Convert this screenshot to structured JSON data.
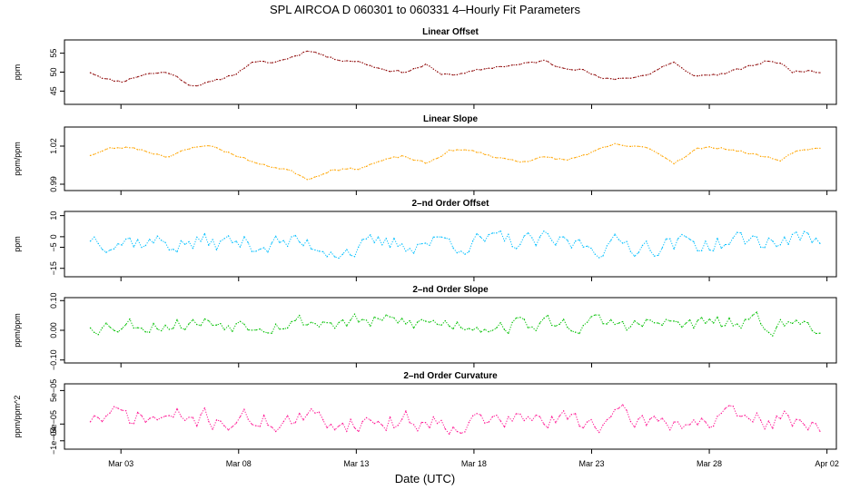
{
  "header": {
    "title": "SPL   AIRCOA D   060301 to 060331   4–Hourly Fit Parameters"
  },
  "x_axis": {
    "label": "Date (UTC)",
    "tick_labels": [
      "Mar 03",
      "Mar 08",
      "Mar 13",
      "Mar 18",
      "Mar 23",
      "Mar 28",
      "Apr 02"
    ],
    "tick_days": [
      3,
      8,
      13,
      18,
      23,
      28,
      33
    ],
    "range_days": [
      0.6,
      33.4
    ],
    "data_range_days": [
      1.7,
      32.7
    ]
  },
  "chart_data": [
    {
      "type": "line",
      "title": "Linear Offset",
      "ylabel": "ppm",
      "yticks": [
        "45",
        "50",
        "55"
      ],
      "ytick_values": [
        45,
        50,
        55
      ],
      "ylim": [
        41.5,
        58.5
      ],
      "color": "#8b0000",
      "seed": 11,
      "noise": 0.3,
      "series": [
        {
          "knots": [
            [
              1.7,
              50
            ],
            [
              2.5,
              48
            ],
            [
              3,
              47.5
            ],
            [
              4,
              49.5
            ],
            [
              5,
              50
            ],
            [
              6,
              46.5
            ],
            [
              7,
              47.5
            ],
            [
              8,
              50
            ],
            [
              8.5,
              52.5
            ],
            [
              9.5,
              52.5
            ],
            [
              10.5,
              54.5
            ],
            [
              11,
              56
            ],
            [
              12,
              53.5
            ],
            [
              13,
              53
            ],
            [
              14,
              51
            ],
            [
              15,
              50
            ],
            [
              16,
              52
            ],
            [
              16.5,
              49.5
            ],
            [
              17.5,
              49.5
            ],
            [
              19,
              51.5
            ],
            [
              20,
              52
            ],
            [
              21,
              53
            ],
            [
              21.5,
              51.5
            ],
            [
              22.5,
              51
            ],
            [
              23.5,
              48
            ],
            [
              24.5,
              48.5
            ],
            [
              25.5,
              49.5
            ],
            [
              26,
              51.5
            ],
            [
              26.5,
              52.5
            ],
            [
              27,
              50
            ],
            [
              27.5,
              49
            ],
            [
              28.5,
              49.5
            ],
            [
              29.5,
              51
            ],
            [
              30.5,
              53
            ],
            [
              31,
              52.5
            ],
            [
              31.5,
              50
            ],
            [
              32,
              50.5
            ],
            [
              32.7,
              50
            ]
          ]
        }
      ]
    },
    {
      "type": "line",
      "title": "Linear Slope",
      "ylabel": "ppm/ppm",
      "yticks": [
        "0.99",
        "1.02"
      ],
      "ytick_values": [
        0.99,
        1.02
      ],
      "ylim": [
        0.985,
        1.035
      ],
      "color": "#ffa500",
      "seed": 23,
      "noise": 0.0008,
      "series": [
        {
          "knots": [
            [
              1.7,
              1.013
            ],
            [
              2.5,
              1.018
            ],
            [
              3.5,
              1.019
            ],
            [
              4.5,
              1.014
            ],
            [
              5,
              1.012
            ],
            [
              6.5,
              1.021
            ],
            [
              7,
              1.019
            ],
            [
              8,
              1.012
            ],
            [
              9,
              1.005
            ],
            [
              10,
              1.002
            ],
            [
              11,
              0.994
            ],
            [
              12,
              1.002
            ],
            [
              13,
              1.002
            ],
            [
              14,
              1.008
            ],
            [
              15,
              1.012
            ],
            [
              16,
              1.006
            ],
            [
              17,
              1.017
            ],
            [
              18,
              1.016
            ],
            [
              19,
              1.011
            ],
            [
              20,
              1.008
            ],
            [
              21,
              1.011
            ],
            [
              22,
              1.009
            ],
            [
              23,
              1.015
            ],
            [
              24,
              1.021
            ],
            [
              25,
              1.019
            ],
            [
              25.5,
              1.018
            ],
            [
              26.5,
              1.007
            ],
            [
              27.5,
              1.018
            ],
            [
              28.5,
              1.019
            ],
            [
              29,
              1.017
            ],
            [
              30,
              1.013
            ],
            [
              31,
              1.009
            ],
            [
              31.5,
              1.014
            ],
            [
              32,
              1.018
            ],
            [
              32.7,
              1.017
            ]
          ]
        }
      ]
    },
    {
      "type": "line",
      "title": "2–nd Order Offset",
      "ylabel": "ppm",
      "yticks": [
        "−15",
        "−5",
        "0",
        "10"
      ],
      "ytick_values": [
        -15,
        -5,
        0,
        10
      ],
      "ylim": [
        -19,
        12
      ],
      "color": "#00bfff",
      "seed": 37,
      "noise": 4.2,
      "series": [
        {
          "knots": [
            [
              1.7,
              0
            ],
            [
              5,
              -3
            ],
            [
              10,
              -3
            ],
            [
              13,
              -6
            ],
            [
              16,
              -2
            ],
            [
              20,
              -3
            ],
            [
              24,
              -4
            ],
            [
              28,
              -3
            ],
            [
              32.7,
              -1
            ]
          ]
        }
      ]
    },
    {
      "type": "line",
      "title": "2–nd Order Slope",
      "ylabel": "ppm/ppm",
      "yticks": [
        "−0.10",
        "0.00",
        "0.10"
      ],
      "ytick_values": [
        -0.1,
        0.0,
        0.1
      ],
      "ylim": [
        -0.11,
        0.11
      ],
      "color": "#00c000",
      "seed": 53,
      "noise": 0.025,
      "series": [
        {
          "knots": [
            [
              1.7,
              0.02
            ],
            [
              10,
              0.03
            ],
            [
              20,
              0.02
            ],
            [
              32.7,
              0.02
            ]
          ]
        }
      ]
    },
    {
      "type": "line",
      "title": "2–nd Order Curvature",
      "ylabel": "ppm/ppm^2",
      "yticks": [
        "−1e−04",
        "−5e−05",
        "5e−05"
      ],
      "ytick_values": [
        -0.0001,
        -5e-05,
        5e-05
      ],
      "ylim": [
        -0.000125,
        7e-05
      ],
      "color": "#ff1493",
      "seed": 71,
      "noise": 2.8e-05,
      "series": [
        {
          "knots": [
            [
              1.7,
              -3e-05
            ],
            [
              10,
              -4e-05
            ],
            [
              20,
              -4e-05
            ],
            [
              32.7,
              -4e-05
            ]
          ]
        }
      ]
    }
  ]
}
